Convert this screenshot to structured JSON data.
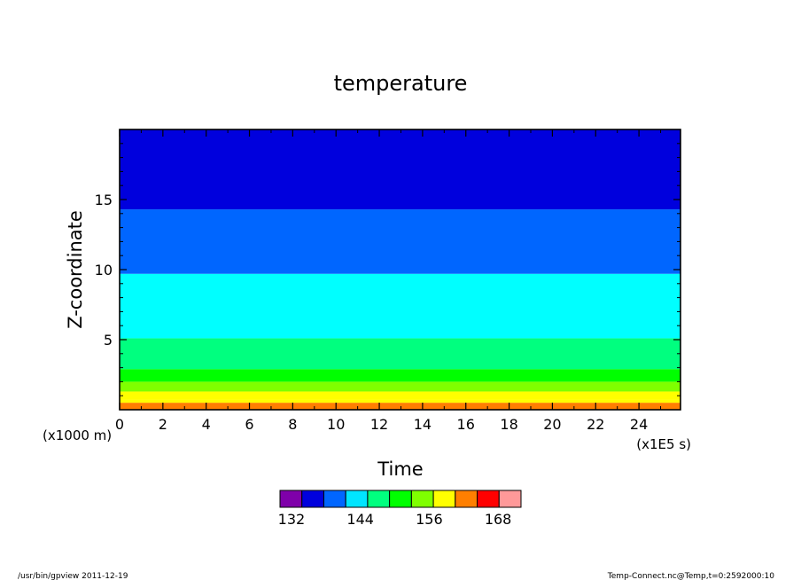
{
  "chart_data": {
    "type": "heatmap",
    "title": "temperature",
    "xlabel": "Time",
    "ylabel": "Z-coordinate",
    "x_unit_label": "(x1E5 s)",
    "y_unit_label": "(x1000 m)",
    "xlim": [
      0,
      25.92
    ],
    "ylim": [
      0,
      20
    ],
    "x_ticks": [
      0,
      2,
      4,
      6,
      8,
      10,
      12,
      14,
      16,
      18,
      20,
      22,
      24
    ],
    "y_ticks": [
      5,
      10,
      15
    ],
    "bands": [
      {
        "z_from": 0.0,
        "z_to": 0.5,
        "color": "#ff7f00"
      },
      {
        "z_from": 0.5,
        "z_to": 0.7,
        "color": "#ffff00"
      },
      {
        "z_from": 0.7,
        "z_to": 1.3,
        "color": "#ffff00"
      },
      {
        "z_from": 1.3,
        "z_to": 2.0,
        "color": "#7fff00"
      },
      {
        "z_from": 2.0,
        "z_to": 2.9,
        "color": "#00ff00"
      },
      {
        "z_from": 2.9,
        "z_to": 5.1,
        "color": "#00ff7f"
      },
      {
        "z_from": 5.1,
        "z_to": 9.7,
        "color": "#00ffff"
      },
      {
        "z_from": 9.7,
        "z_to": 14.3,
        "color": "#0066ff"
      },
      {
        "z_from": 14.3,
        "z_to": 20.0,
        "color": "#0000dd"
      }
    ],
    "colorbar": {
      "colors": [
        "#7f00aa",
        "#0000dd",
        "#0066ff",
        "#00e5ff",
        "#00ff7f",
        "#00ff00",
        "#7fff00",
        "#ffff00",
        "#ff7f00",
        "#ff0000",
        "#ff9999"
      ],
      "min": 130,
      "max": 172,
      "labels": [
        "132",
        "144",
        "156",
        "168"
      ]
    }
  },
  "footer": {
    "left": "/usr/bin/gpview   2011-12-19",
    "right": "Temp-Connect.nc@Temp,t=0:2592000:10"
  }
}
